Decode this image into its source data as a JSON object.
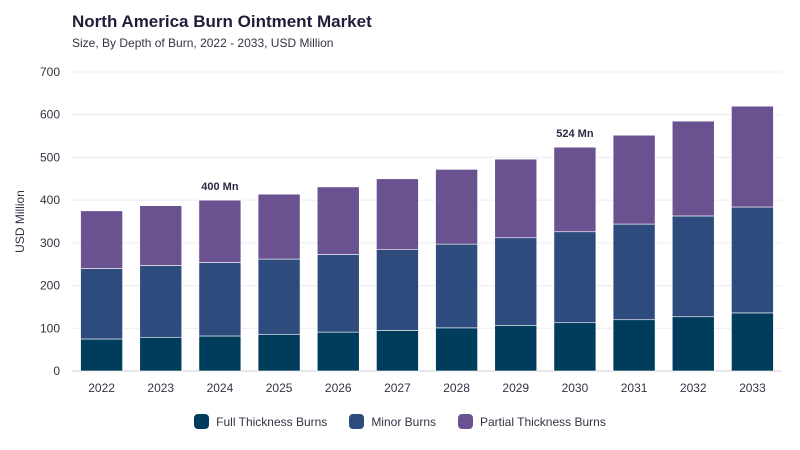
{
  "chart_data": {
    "type": "bar",
    "stacked": true,
    "title": "North America Burn Ointment Market",
    "subtitle": "Size, By Depth of Burn, 2022 - 2033, USD Million",
    "ylabel": "USD Million",
    "xlabel": "",
    "ylim": [
      0,
      700
    ],
    "yticks": [
      0,
      100,
      200,
      300,
      400,
      500,
      600,
      700
    ],
    "grid": true,
    "legend_position": "bottom",
    "categories": [
      "2022",
      "2023",
      "2024",
      "2025",
      "2026",
      "2027",
      "2028",
      "2029",
      "2030",
      "2031",
      "2032",
      "2033"
    ],
    "series": [
      {
        "name": "Full Thickness Burns",
        "color": "#003d5c",
        "values": [
          75,
          79,
          82,
          86,
          91,
          95,
          101,
          107,
          113,
          120,
          127,
          136
        ]
      },
      {
        "name": "Minor Burns",
        "color": "#2e4b7d",
        "values": [
          165,
          168,
          172,
          176,
          182,
          189,
          196,
          205,
          213,
          224,
          236,
          248
        ]
      },
      {
        "name": "Partial Thickness Burns",
        "color": "#6a5190",
        "values": [
          135,
          140,
          146,
          152,
          158,
          166,
          175,
          184,
          198,
          208,
          222,
          236
        ]
      }
    ],
    "annotations": [
      {
        "category": "2024",
        "text": "400 Mn"
      },
      {
        "category": "2030",
        "text": "524 Mn"
      }
    ]
  }
}
